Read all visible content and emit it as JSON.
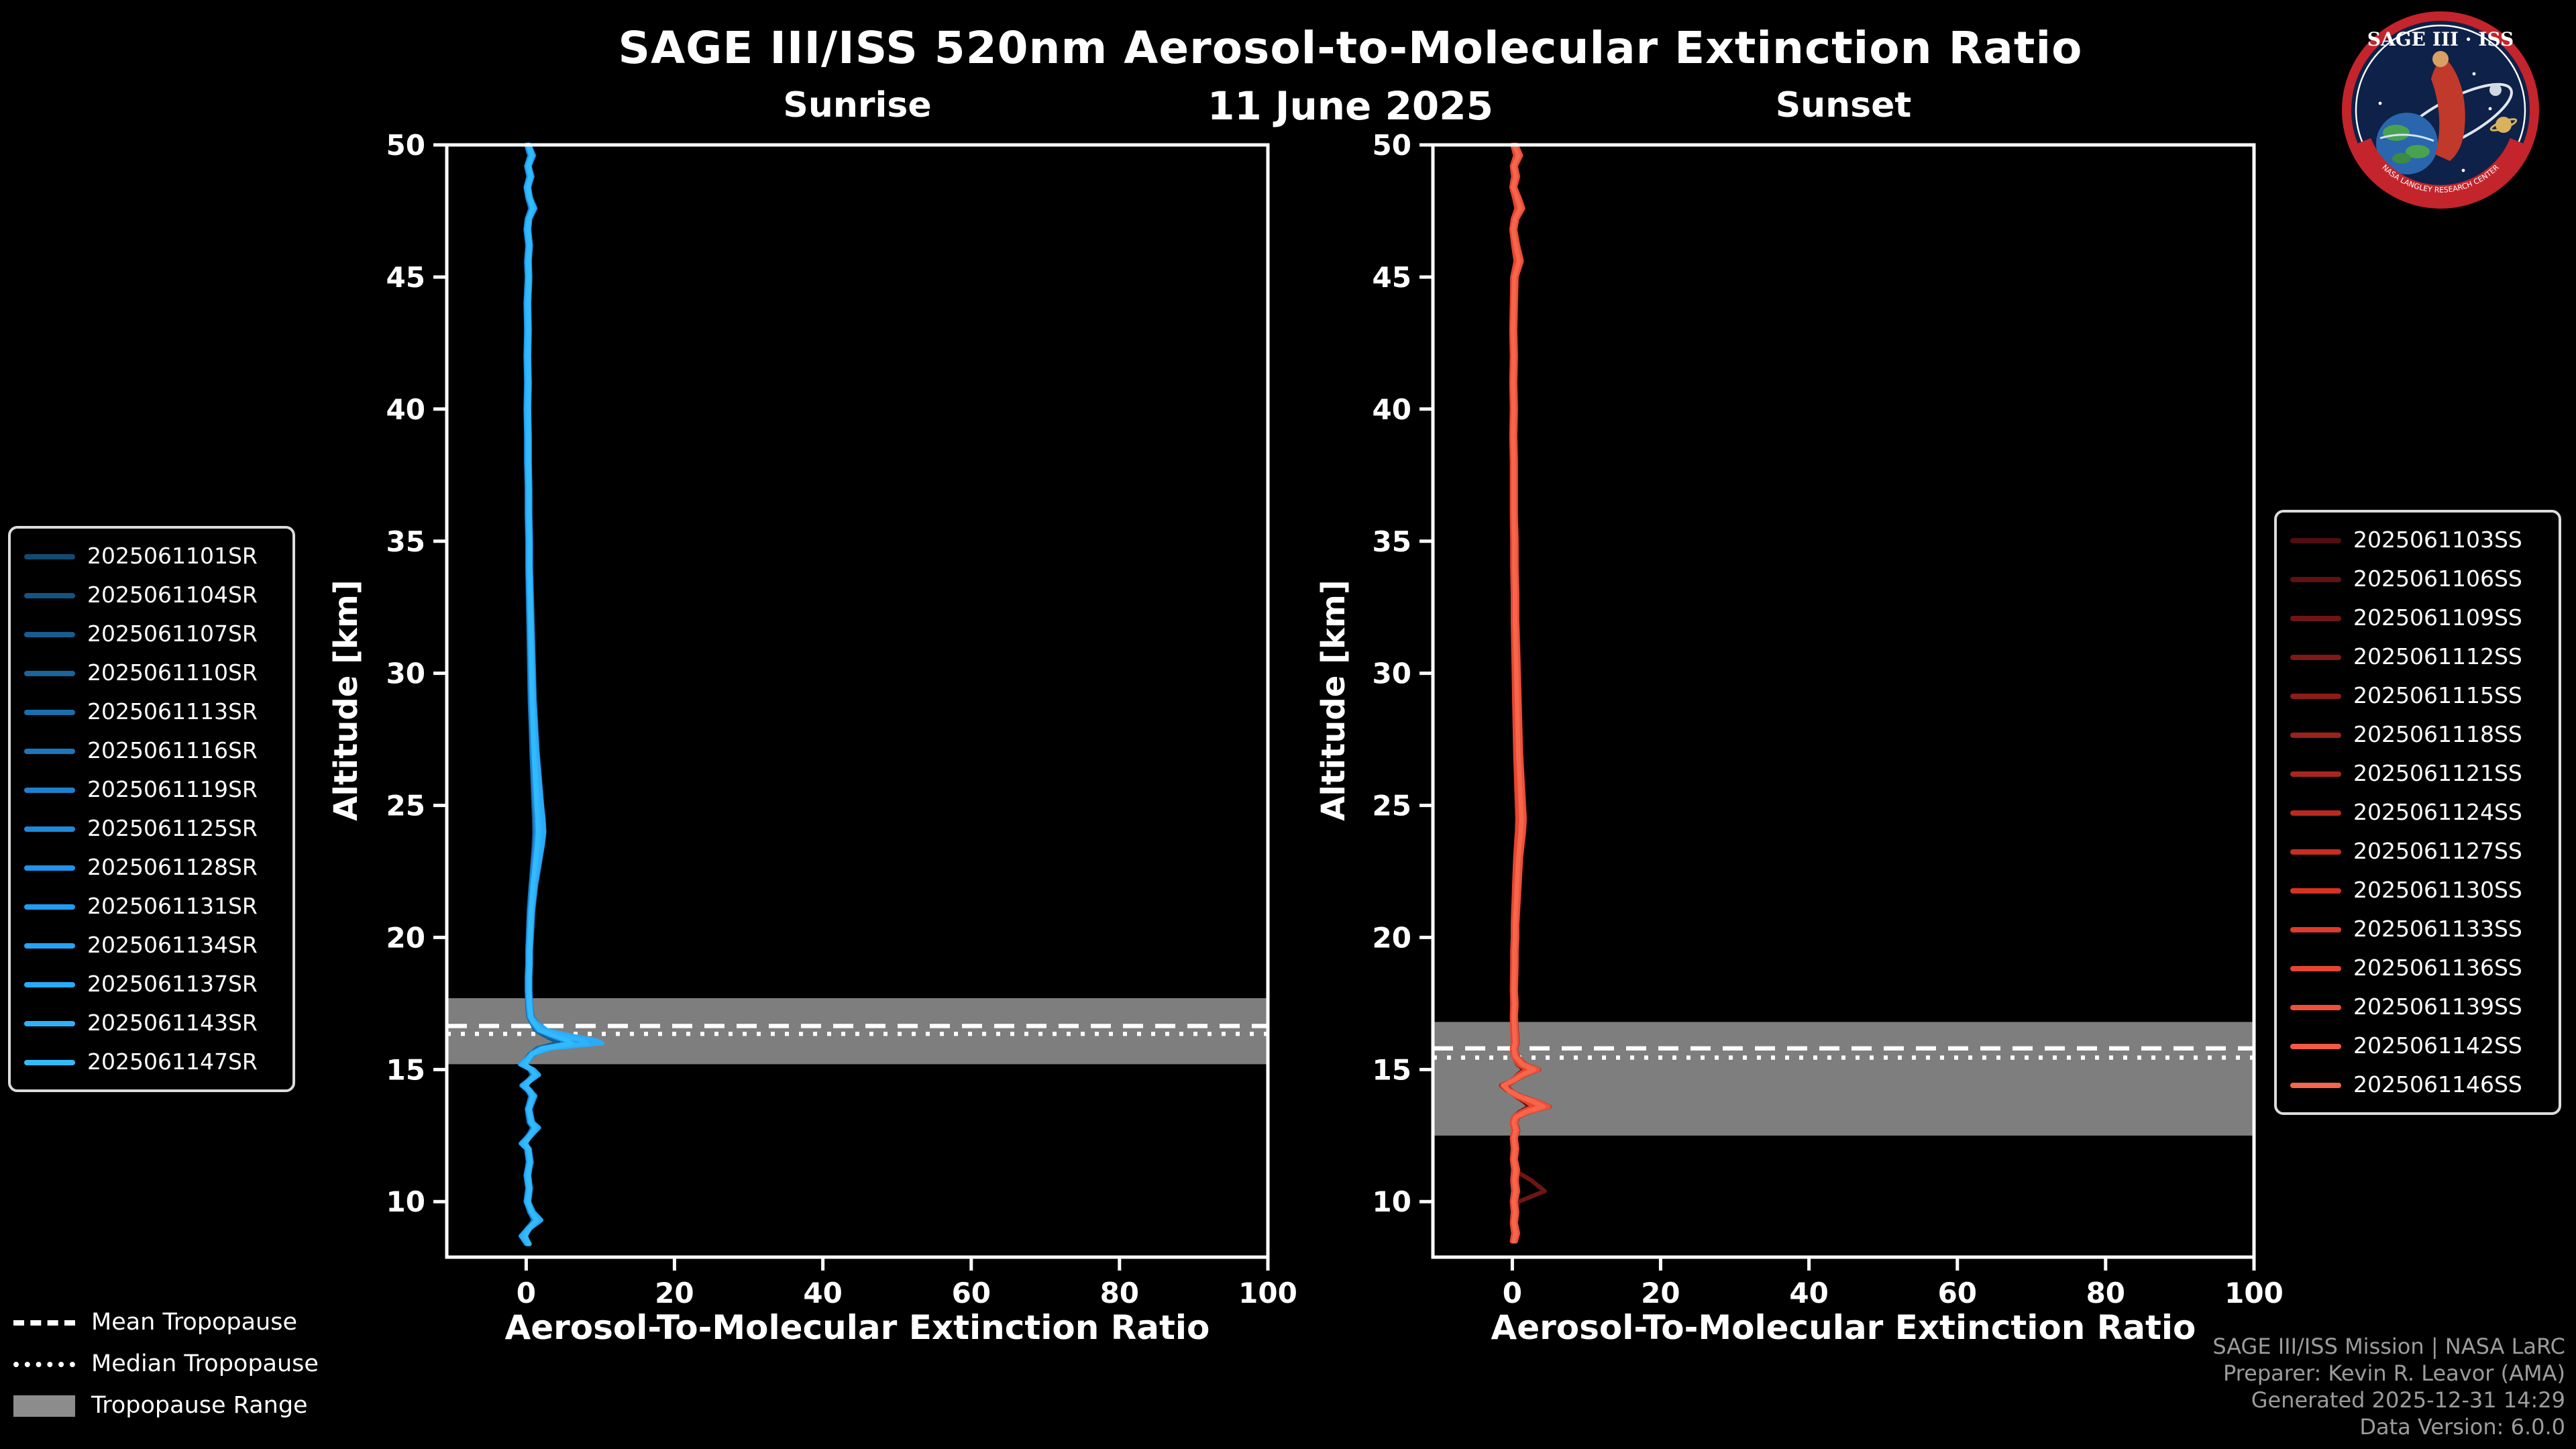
{
  "colors": {
    "background": "#000000",
    "foreground": "#ffffff",
    "band": "#8c8c8c",
    "sunrise_accent": "#2aabf8",
    "sunset_accent": "#f25b42"
  },
  "logo": {
    "name": "SAGE III · ISS",
    "banner": "NASA LANGLEY RESEARCH CENTER"
  },
  "tropopause_legend": {
    "mean": "Mean Tropopause",
    "median": "Median Tropopause",
    "range": "Tropopause Range"
  },
  "credits": {
    "line1": "SAGE III/ISS Mission | NASA LaRC",
    "line2": "Preparer: Kevin R. Leavor (AMA)",
    "line3": "Generated 2025-12-31 14:29",
    "line4": "Data Version: 6.0.0"
  },
  "chart_data": {
    "type": "line",
    "title": "SAGE III/ISS 520nm Aerosol-to-Molecular Extinction Ratio",
    "subtitle": "11 June 2025",
    "grid": false,
    "panels": [
      {
        "id": "sunrise",
        "title": "Sunrise",
        "xlabel": "Aerosol-To-Molecular Extinction Ratio",
        "ylabel": "Altitude [km]",
        "xlim": [
          -10.7,
          100
        ],
        "ylim": [
          7.9,
          50
        ],
        "xticks": [
          0,
          20,
          40,
          60,
          80,
          100
        ],
        "yticks": [
          10,
          15,
          20,
          25,
          30,
          35,
          40,
          45,
          50
        ],
        "tropopause": {
          "mean": 16.65,
          "median": 16.35,
          "range": [
            15.2,
            17.7
          ]
        },
        "base_profile": [
          [
            50,
            0.3
          ],
          [
            49.6,
            0.9
          ],
          [
            49.2,
            0.3
          ],
          [
            48.8,
            0.7
          ],
          [
            48.4,
            0.2
          ],
          [
            48,
            0.5
          ],
          [
            47.6,
            1.1
          ],
          [
            47.2,
            0.4
          ],
          [
            46.8,
            0.2
          ],
          [
            46.2,
            0.5
          ],
          [
            45.6,
            0.3
          ],
          [
            45,
            0.4
          ],
          [
            44,
            0.2
          ],
          [
            43,
            0.3
          ],
          [
            42,
            0.2
          ],
          [
            41,
            0.3
          ],
          [
            40,
            0.2
          ],
          [
            39,
            0.3
          ],
          [
            38,
            0.3
          ],
          [
            37,
            0.4
          ],
          [
            36,
            0.4
          ],
          [
            35,
            0.5
          ],
          [
            34,
            0.5
          ],
          [
            33,
            0.6
          ],
          [
            32,
            0.7
          ],
          [
            31,
            0.8
          ],
          [
            30,
            0.9
          ],
          [
            29,
            1.0
          ],
          [
            28,
            1.2
          ],
          [
            27,
            1.4
          ],
          [
            26,
            1.7
          ],
          [
            25,
            2.0
          ],
          [
            24.5,
            2.2
          ],
          [
            24,
            2.3
          ],
          [
            23.5,
            2.1
          ],
          [
            23,
            1.8
          ],
          [
            22.5,
            1.5
          ],
          [
            22,
            1.2
          ],
          [
            21.5,
            1.0
          ],
          [
            21,
            0.8
          ],
          [
            20.5,
            0.7
          ],
          [
            20,
            0.6
          ],
          [
            19.5,
            0.5
          ],
          [
            19,
            0.5
          ],
          [
            18.5,
            0.4
          ],
          [
            18,
            0.4
          ],
          [
            17.5,
            0.5
          ],
          [
            17,
            0.7
          ],
          [
            16.8,
            1.2
          ],
          [
            16.5,
            2.6
          ],
          [
            16.3,
            5.5
          ],
          [
            16.1,
            9.0
          ],
          [
            16,
            9.8
          ],
          [
            15.9,
            6.5
          ],
          [
            15.8,
            3.2
          ],
          [
            15.6,
            1.0
          ],
          [
            15.4,
            0.3
          ],
          [
            15.2,
            -0.6
          ],
          [
            15,
            0.9
          ],
          [
            14.8,
            1.6
          ],
          [
            14.6,
            0.6
          ],
          [
            14.4,
            -0.4
          ],
          [
            14.2,
            0.5
          ],
          [
            14,
            1.1
          ],
          [
            13.5,
            0.4
          ],
          [
            13,
            0.8
          ],
          [
            12.8,
            1.6
          ],
          [
            12.5,
            0.6
          ],
          [
            12.2,
            -0.5
          ],
          [
            12,
            0.3
          ],
          [
            11.5,
            0.6
          ],
          [
            11,
            0.2
          ],
          [
            10.5,
            0.5
          ],
          [
            10,
            0.2
          ],
          [
            9.6,
            0.9
          ],
          [
            9.3,
            1.9
          ],
          [
            9,
            0.5
          ],
          [
            8.7,
            -0.5
          ],
          [
            8.4,
            0.3
          ]
        ],
        "series": [
          {
            "name": "2025061101SR",
            "color": "#134a72",
            "scale": 0.45,
            "offset": 0.1
          },
          {
            "name": "2025061104SR",
            "color": "#155381",
            "scale": 0.7,
            "offset": -0.2
          },
          {
            "name": "2025061107SR",
            "color": "#175c90",
            "scale": 0.4,
            "offset": 0.2
          },
          {
            "name": "2025061110SR",
            "color": "#18659f",
            "scale": 0.9,
            "offset": 0.0
          },
          {
            "name": "2025061113SR",
            "color": "#1a6eae",
            "scale": 0.6,
            "offset": -0.1
          },
          {
            "name": "2025061116SR",
            "color": "#1b77bd",
            "scale": 1.0,
            "offset": 0.15
          },
          {
            "name": "2025061119SR",
            "color": "#1d80cc",
            "scale": 0.8,
            "offset": -0.15
          },
          {
            "name": "2025061125SR",
            "color": "#1e89db",
            "scale": 0.55,
            "offset": 0.05
          },
          {
            "name": "2025061128SR",
            "color": "#2092ea",
            "scale": 0.75,
            "offset": 0.25
          },
          {
            "name": "2025061131SR",
            "color": "#229bf4",
            "scale": 0.95,
            "offset": -0.25
          },
          {
            "name": "2025061134SR",
            "color": "#26a3f6",
            "scale": 0.65,
            "offset": 0.1
          },
          {
            "name": "2025061137SR",
            "color": "#2aabf8",
            "scale": 1.05,
            "offset": 0.0
          },
          {
            "name": "2025061143SR",
            "color": "#2eb3fa",
            "scale": 0.85,
            "offset": -0.05
          },
          {
            "name": "2025061147SR",
            "color": "#32bbfc",
            "scale": 0.6,
            "offset": 0.2
          }
        ]
      },
      {
        "id": "sunset",
        "title": "Sunset",
        "xlabel": "Aerosol-To-Molecular Extinction Ratio",
        "ylabel": "Altitude [km]",
        "xlim": [
          -10.7,
          100
        ],
        "ylim": [
          7.9,
          50
        ],
        "xticks": [
          0,
          20,
          40,
          60,
          80,
          100
        ],
        "yticks": [
          10,
          15,
          20,
          25,
          30,
          35,
          40,
          45,
          50
        ],
        "tropopause": {
          "mean": 15.8,
          "median": 15.45,
          "range": [
            12.5,
            16.8
          ]
        },
        "base_profile": [
          [
            50,
            0.4
          ],
          [
            49.6,
            1.0
          ],
          [
            49.2,
            0.3
          ],
          [
            48.8,
            0.6
          ],
          [
            48.4,
            0.2
          ],
          [
            48,
            0.8
          ],
          [
            47.6,
            1.3
          ],
          [
            47.2,
            0.5
          ],
          [
            46.8,
            0.2
          ],
          [
            46.2,
            0.6
          ],
          [
            45.6,
            1.1
          ],
          [
            45,
            0.4
          ],
          [
            44,
            0.3
          ],
          [
            43,
            0.2
          ],
          [
            42,
            0.3
          ],
          [
            41,
            0.2
          ],
          [
            40,
            0.3
          ],
          [
            39,
            0.2
          ],
          [
            38,
            0.3
          ],
          [
            37,
            0.3
          ],
          [
            36,
            0.3
          ],
          [
            35,
            0.4
          ],
          [
            34,
            0.4
          ],
          [
            33,
            0.5
          ],
          [
            32,
            0.5
          ],
          [
            31,
            0.6
          ],
          [
            30,
            0.7
          ],
          [
            29,
            0.8
          ],
          [
            28,
            0.9
          ],
          [
            27,
            1.0
          ],
          [
            26,
            1.2
          ],
          [
            25,
            1.4
          ],
          [
            24.5,
            1.5
          ],
          [
            24,
            1.4
          ],
          [
            23.5,
            1.2
          ],
          [
            23,
            1.0
          ],
          [
            22.5,
            0.9
          ],
          [
            22,
            0.8
          ],
          [
            21.5,
            0.7
          ],
          [
            21,
            0.6
          ],
          [
            20.5,
            0.5
          ],
          [
            20,
            0.5
          ],
          [
            19.5,
            0.4
          ],
          [
            19,
            0.4
          ],
          [
            18,
            0.3
          ],
          [
            17.5,
            0.4
          ],
          [
            17,
            0.3
          ],
          [
            16.5,
            0.4
          ],
          [
            16,
            0.5
          ],
          [
            15.8,
            0.3
          ],
          [
            15.5,
            0.5
          ],
          [
            15.2,
            1.6
          ],
          [
            15,
            3.4
          ],
          [
            14.8,
            1.6
          ],
          [
            14.6,
            0.3
          ],
          [
            14.4,
            -1.3
          ],
          [
            14.2,
            -0.5
          ],
          [
            14,
            1.0
          ],
          [
            13.8,
            3.2
          ],
          [
            13.6,
            4.8
          ],
          [
            13.4,
            2.2
          ],
          [
            13.2,
            0.6
          ],
          [
            13,
            0.3
          ],
          [
            12.7,
            0.6
          ],
          [
            12.4,
            0.3
          ],
          [
            12,
            0.5
          ],
          [
            11.6,
            0.3
          ],
          [
            11.2,
            0.6
          ],
          [
            10.8,
            0.4
          ],
          [
            10.4,
            0.6
          ],
          [
            10,
            0.3
          ],
          [
            9.6,
            0.5
          ],
          [
            9.2,
            0.3
          ],
          [
            8.8,
            0.6
          ],
          [
            8.5,
            0.3
          ]
        ],
        "series": [
          {
            "name": "2025061103SS",
            "color": "#4f0e10",
            "scale": 0.6,
            "offset": 0.0
          },
          {
            "name": "2025061106SS",
            "color": "#5e1212",
            "scale": 0.8,
            "offset": 0.15
          },
          {
            "name": "2025061109SS",
            "color": "#6d1614",
            "scale": 0.5,
            "offset": -0.1,
            "spike": {
              "alt": 10.5,
              "peak": 5.0,
              "width": 0.6
            }
          },
          {
            "name": "2025061112SS",
            "color": "#7c1a16",
            "scale": 1.0,
            "offset": 0.2
          },
          {
            "name": "2025061115SS",
            "color": "#8b1e18",
            "scale": 0.7,
            "offset": -0.2
          },
          {
            "name": "2025061118SS",
            "color": "#9a221a",
            "scale": 0.9,
            "offset": 0.1
          },
          {
            "name": "2025061121SS",
            "color": "#a9261c",
            "scale": 0.6,
            "offset": 0.05
          },
          {
            "name": "2025061124SS",
            "color": "#b82a1e",
            "scale": 1.05,
            "offset": -0.15
          },
          {
            "name": "2025061127SS",
            "color": "#c72e20",
            "scale": 0.75,
            "offset": 0.25
          },
          {
            "name": "2025061130SS",
            "color": "#d63222",
            "scale": 0.85,
            "offset": -0.05
          },
          {
            "name": "2025061133SS",
            "color": "#e03a2a",
            "scale": 0.95,
            "offset": 0.1
          },
          {
            "name": "2025061136SS",
            "color": "#e74532",
            "scale": 0.65,
            "offset": -0.25
          },
          {
            "name": "2025061139SS",
            "color": "#ee503a",
            "scale": 1.0,
            "offset": 0.15
          },
          {
            "name": "2025061142SS",
            "color": "#f25b42",
            "scale": 0.8,
            "offset": 0.0
          },
          {
            "name": "2025061146SS",
            "color": "#f6664a",
            "scale": 0.9,
            "offset": -0.1
          }
        ]
      }
    ]
  }
}
